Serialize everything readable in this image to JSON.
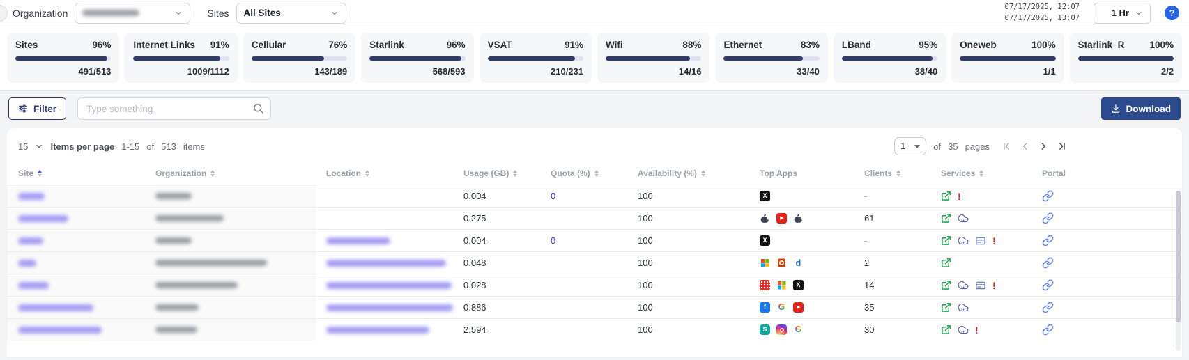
{
  "topbar": {
    "organization_label": "Organization",
    "sites_label": "Sites",
    "sites_value": "All Sites",
    "timestamp_start": "07/17/2025, 12:07",
    "timestamp_end": "07/17/2025, 13:07",
    "time_range": "1 Hr",
    "help_icon": "question-mark"
  },
  "stats": [
    {
      "label": "Sites",
      "percent": 96,
      "fraction": "491/513"
    },
    {
      "label": "Internet Links",
      "percent": 91,
      "fraction": "1009/1112"
    },
    {
      "label": "Cellular",
      "percent": 76,
      "fraction": "143/189"
    },
    {
      "label": "Starlink",
      "percent": 96,
      "fraction": "568/593"
    },
    {
      "label": "VSAT",
      "percent": 91,
      "fraction": "210/231"
    },
    {
      "label": "Wifi",
      "percent": 88,
      "fraction": "14/16"
    },
    {
      "label": "Ethernet",
      "percent": 83,
      "fraction": "33/40"
    },
    {
      "label": "LBand",
      "percent": 95,
      "fraction": "38/40"
    },
    {
      "label": "Oneweb",
      "percent": 100,
      "fraction": "1/1"
    },
    {
      "label": "Starlink_R",
      "percent": 100,
      "fraction": "2/2"
    }
  ],
  "toolbar": {
    "filter_label": "Filter",
    "search_placeholder": "Type something",
    "download_label": "Download"
  },
  "pagination": {
    "page_size": "15",
    "items_per_page_label": "Items per page",
    "range": "1-15",
    "of_label": "of",
    "total_items": "513",
    "items_label": "items",
    "current_page": "1",
    "pages_of_label": "of",
    "total_pages": "35",
    "pages_label": "pages"
  },
  "table": {
    "columns": [
      {
        "label": "Site",
        "sortable": true,
        "sorted": "asc"
      },
      {
        "label": "Organization",
        "sortable": true,
        "sorted": null
      },
      {
        "label": "Location",
        "sortable": true,
        "sorted": null
      },
      {
        "label": "Usage (GB)",
        "sortable": true,
        "sorted": null
      },
      {
        "label": "Quota (%)",
        "sortable": true,
        "sorted": null
      },
      {
        "label": "Availability (%)",
        "sortable": true,
        "sorted": null
      },
      {
        "label": "Top Apps",
        "sortable": false,
        "sorted": null
      },
      {
        "label": "Clients",
        "sortable": true,
        "sorted": null
      },
      {
        "label": "Services",
        "sortable": true,
        "sorted": null
      },
      {
        "label": "Portal",
        "sortable": false,
        "sorted": null
      }
    ],
    "rows": [
      {
        "site_redacted_w": 38,
        "org_redacted_w": 52,
        "loc_redacted_w": 0,
        "usage": "0.004",
        "quota": "0",
        "availability": "100",
        "apps": [
          "x"
        ],
        "clients": "-",
        "services": [
          "external",
          "alert"
        ],
        "portal": true
      },
      {
        "site_redacted_w": 72,
        "org_redacted_w": 98,
        "loc_redacted_w": 0,
        "usage": "0.275",
        "quota": "",
        "availability": "100",
        "apps": [
          "apple",
          "youtube",
          "apple"
        ],
        "clients": "61",
        "services": [
          "external",
          "cloud"
        ],
        "portal": true
      },
      {
        "site_redacted_w": 36,
        "org_redacted_w": 52,
        "loc_redacted_w": 92,
        "usage": "0.004",
        "quota": "0",
        "availability": "100",
        "apps": [
          "x"
        ],
        "clients": "-",
        "services": [
          "external",
          "cloud",
          "card",
          "alert"
        ],
        "portal": true
      },
      {
        "site_redacted_w": 26,
        "org_redacted_w": 160,
        "loc_redacted_w": 172,
        "usage": "0.048",
        "quota": "",
        "availability": "100",
        "apps": [
          "microsoft",
          "office",
          "d"
        ],
        "clients": "2",
        "services": [
          "external"
        ],
        "portal": true
      },
      {
        "site_redacted_w": 44,
        "org_redacted_w": 118,
        "loc_redacted_w": 180,
        "usage": "0.028",
        "quota": "",
        "availability": "100",
        "apps": [
          "reddots",
          "microsoft",
          "x"
        ],
        "clients": "14",
        "services": [
          "external",
          "cloud",
          "card",
          "alert"
        ],
        "portal": true
      },
      {
        "site_redacted_w": 108,
        "org_redacted_w": 62,
        "loc_redacted_w": 186,
        "usage": "0.886",
        "quota": "",
        "availability": "100",
        "apps": [
          "facebook",
          "google",
          "youtube"
        ],
        "clients": "35",
        "services": [
          "external",
          "cloud"
        ],
        "portal": true
      },
      {
        "site_redacted_w": 120,
        "org_redacted_w": 60,
        "loc_redacted_w": 148,
        "usage": "2.594",
        "quota": "",
        "availability": "100",
        "apps": [
          "surfshark",
          "instagram",
          "google"
        ],
        "clients": "30",
        "services": [
          "external",
          "cloud",
          "alert"
        ],
        "portal": true
      }
    ]
  },
  "colors": {
    "navy": "#2e3b6e",
    "progress_track": "#dfe1f4",
    "download_blue": "#2c4a8e",
    "sort_active_blue": "#2563eb",
    "quota_link_blue": "#2433e0",
    "service_green": "#1aa34a",
    "service_slate": "#5a69a9",
    "alert_red": "#e02424",
    "portal_blue": "#6286ef",
    "redacted_link": "#8d84f1",
    "redacted_text": "#81868f"
  }
}
